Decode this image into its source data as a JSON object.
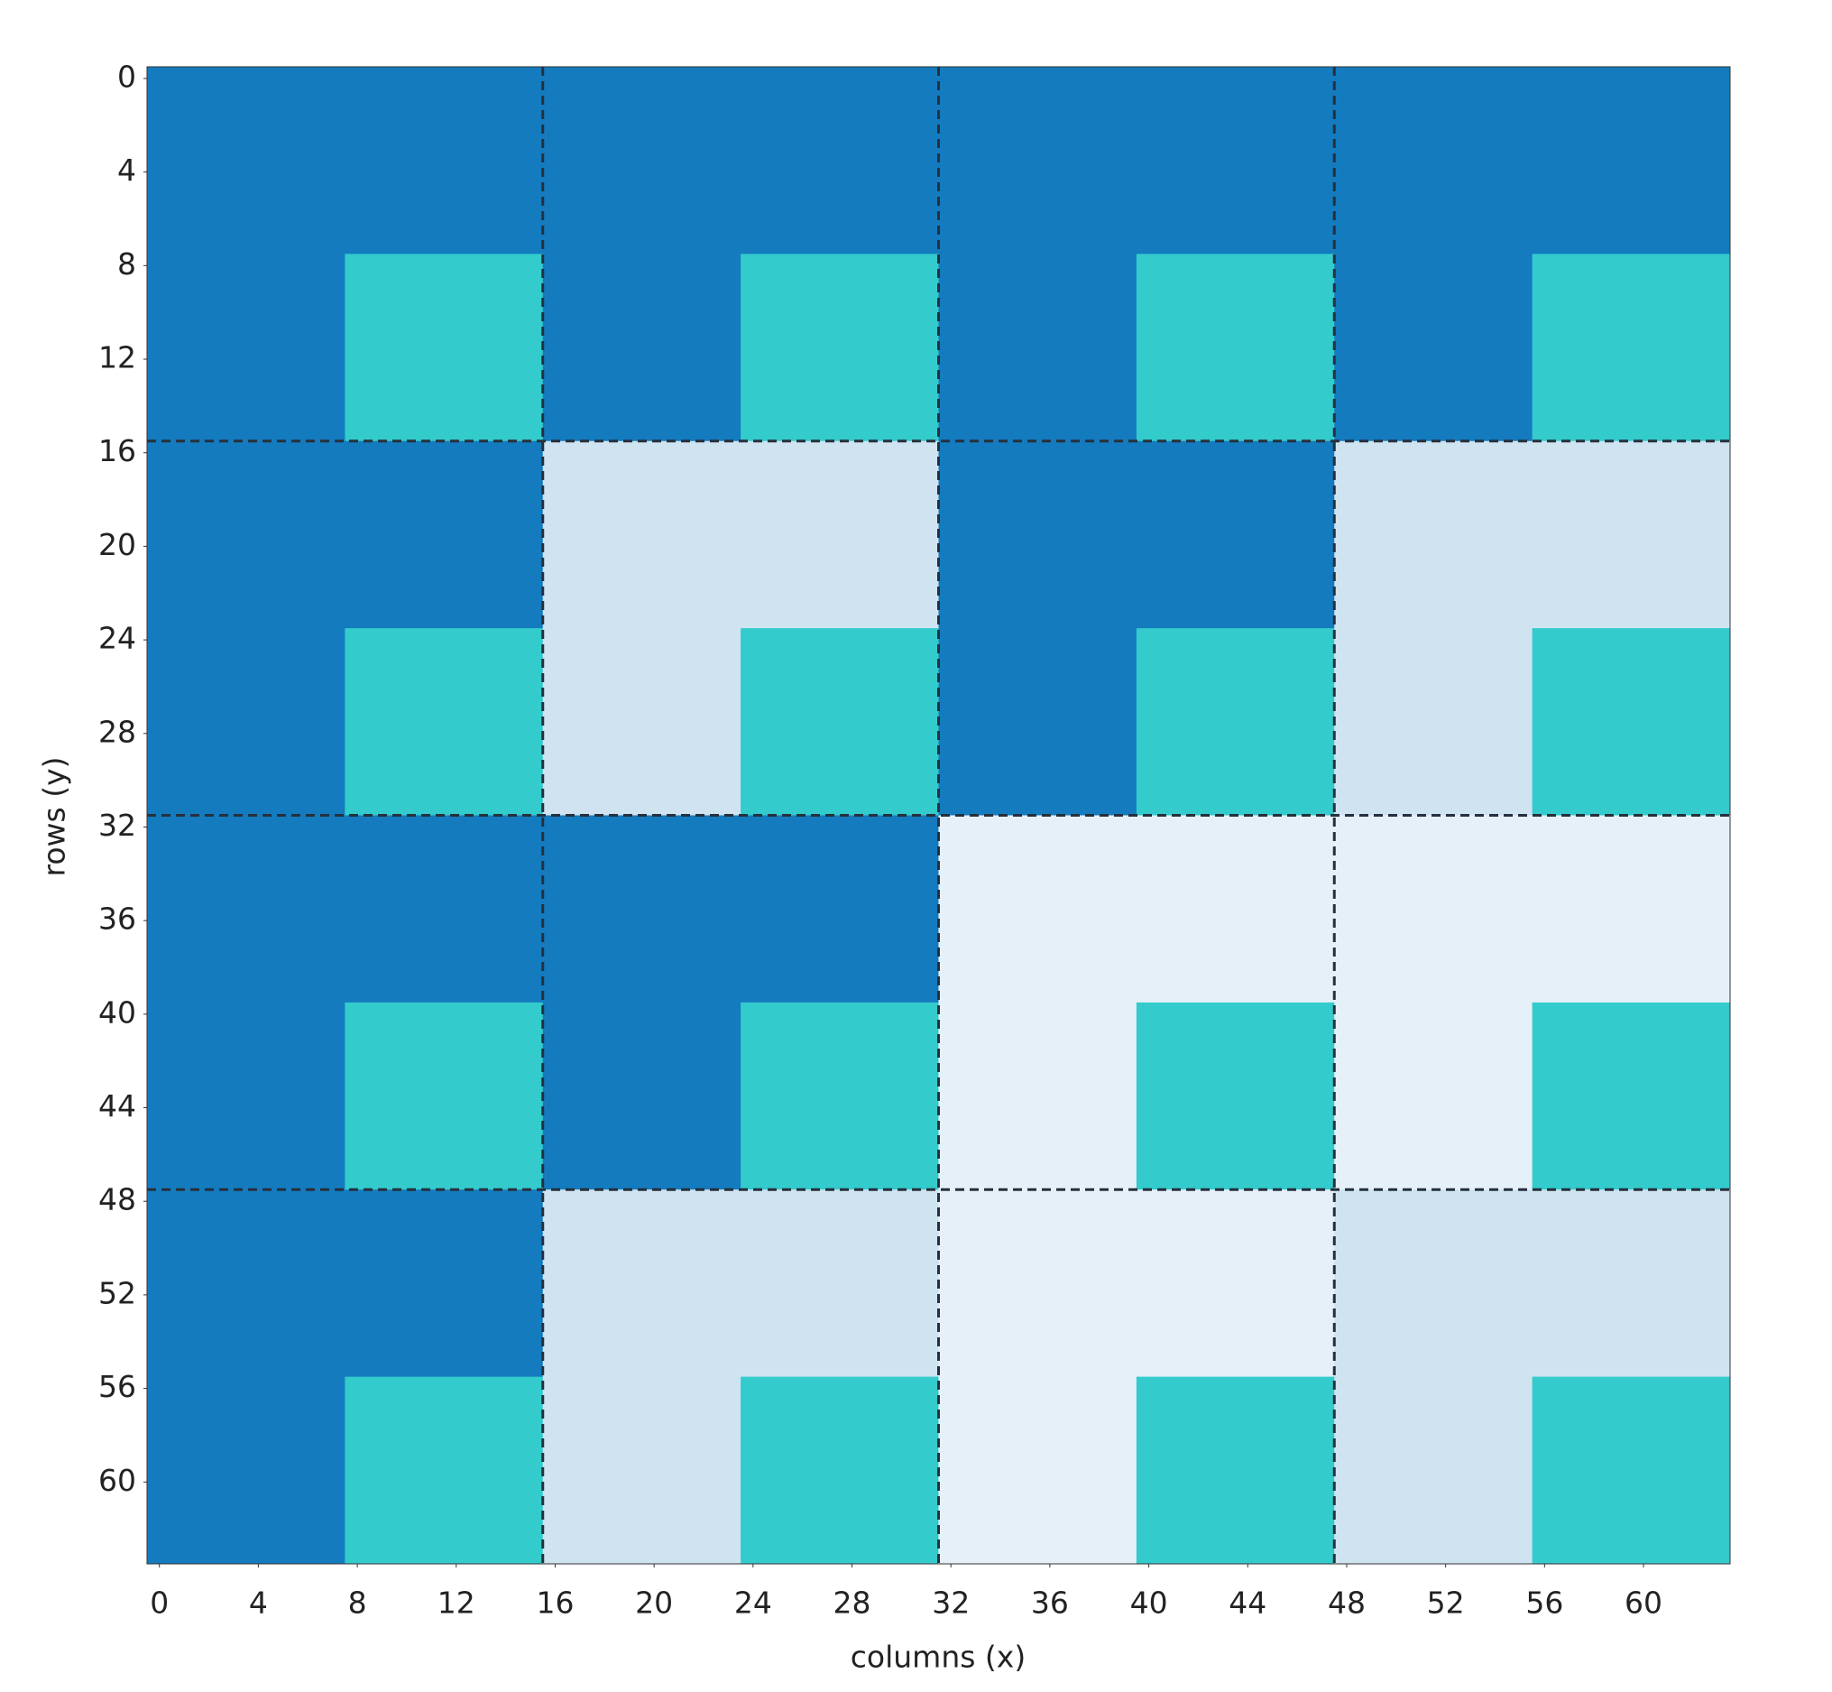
{
  "chart_data": {
    "type": "heatmap",
    "x_label": "columns (x)",
    "y_label": "rows (y)",
    "xlim": [
      -0.5,
      63.5
    ],
    "ylim": [
      63.5,
      -0.5
    ],
    "xticks": [
      0,
      4,
      8,
      12,
      16,
      20,
      24,
      28,
      32,
      36,
      40,
      44,
      48,
      52,
      56,
      60
    ],
    "yticks": [
      0,
      4,
      8,
      12,
      16,
      20,
      24,
      28,
      32,
      36,
      40,
      44,
      48,
      52,
      56,
      60
    ],
    "x_edges": [
      -0.5,
      7.5,
      15.5,
      23.5,
      31.5,
      39.5,
      47.5,
      55.5,
      63.5
    ],
    "y_edges": [
      -0.5,
      7.5,
      15.5,
      23.5,
      31.5,
      39.5,
      47.5,
      55.5,
      63.5
    ],
    "dividers": [
      15.5,
      31.5,
      47.5
    ],
    "divider_color": "#26303c",
    "cells": [
      [
        "#147bbf",
        "#147bbf",
        "#147bbf",
        "#147bbf",
        "#147bbf",
        "#147bbf",
        "#147bbf",
        "#147bbf"
      ],
      [
        "#147bbf",
        "#33cbcc",
        "#147bbf",
        "#33cbcc",
        "#147bbf",
        "#33cbcc",
        "#147bbf",
        "#33cbcc"
      ],
      [
        "#147bbf",
        "#147bbf",
        "#cfe3f1",
        "#cfe3f1",
        "#147bbf",
        "#147bbf",
        "#cfe3f1",
        "#cfe3f1"
      ],
      [
        "#147bbf",
        "#33cbcc",
        "#cfe3f1",
        "#33cbcc",
        "#147bbf",
        "#33cbcc",
        "#cfe3f1",
        "#33cbcc"
      ],
      [
        "#147bbf",
        "#147bbf",
        "#147bbf",
        "#147bbf",
        "#e6f0f9",
        "#e6f0f9",
        "#e6f0f9",
        "#e6f0f9"
      ],
      [
        "#147bbf",
        "#33cbcc",
        "#147bbf",
        "#33cbcc",
        "#e6f0f9",
        "#33cbcc",
        "#e6f0f9",
        "#33cbcc"
      ],
      [
        "#147bbf",
        "#147bbf",
        "#cfe3f1",
        "#cfe3f1",
        "#e6f0f9",
        "#e6f0f9",
        "#cfe3f1",
        "#cfe3f1"
      ],
      [
        "#147bbf",
        "#33cbcc",
        "#cfe3f1",
        "#33cbcc",
        "#e6f0f9",
        "#33cbcc",
        "#cfe3f1",
        "#33cbcc"
      ]
    ]
  }
}
